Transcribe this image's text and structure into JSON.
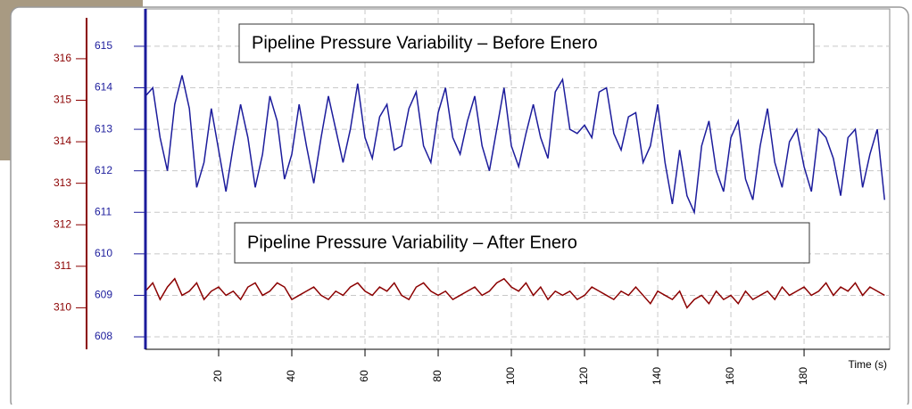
{
  "chart_data": {
    "type": "line",
    "annotations": [
      "Pipeline Pressure Variability – Before Enero",
      "Pipeline Pressure Variability – After Enero"
    ],
    "x_label": "Time (s)",
    "x": [
      0,
      2,
      4,
      6,
      8,
      10,
      12,
      14,
      16,
      18,
      20,
      22,
      24,
      26,
      28,
      30,
      32,
      34,
      36,
      38,
      40,
      42,
      44,
      46,
      48,
      50,
      52,
      54,
      56,
      58,
      60,
      62,
      64,
      66,
      68,
      70,
      72,
      74,
      76,
      78,
      80,
      82,
      84,
      86,
      88,
      90,
      92,
      94,
      96,
      98,
      100,
      102,
      104,
      106,
      108,
      110,
      112,
      114,
      116,
      118,
      120,
      122,
      124,
      126,
      128,
      130,
      132,
      134,
      136,
      138,
      140,
      142,
      144,
      146,
      148,
      150,
      152,
      154,
      156,
      158,
      160,
      162,
      164,
      166,
      168,
      170,
      172,
      174,
      176,
      178,
      180,
      182,
      184,
      186,
      188,
      190,
      192,
      194,
      196,
      198,
      200,
      202
    ],
    "series": [
      {
        "color": "#1c1c9c",
        "values": [
          613.8,
          614.0,
          612.8,
          612.0,
          613.6,
          614.3,
          613.5,
          611.6,
          612.2,
          613.5,
          612.5,
          611.5,
          612.6,
          613.6,
          612.8,
          611.6,
          612.4,
          613.8,
          613.2,
          611.8,
          612.4,
          613.6,
          612.6,
          611.7,
          612.8,
          613.8,
          613.0,
          612.2,
          613.0,
          614.1,
          612.8,
          612.3,
          613.3,
          613.6,
          612.5,
          612.6,
          613.5,
          613.9,
          612.6,
          612.2,
          613.4,
          614.0,
          612.8,
          612.4,
          613.2,
          613.8,
          612.6,
          612.0,
          613.0,
          614.0,
          612.6,
          612.1,
          612.9,
          613.6,
          612.8,
          612.3,
          613.9,
          614.2,
          613.0,
          612.9,
          613.1,
          612.8,
          613.9,
          614.0,
          612.9,
          612.5,
          613.3,
          613.4,
          612.2,
          612.6,
          613.6,
          612.2,
          611.2,
          612.5,
          611.4,
          611.0,
          612.6,
          613.2,
          612.0,
          611.5,
          612.8,
          613.2,
          611.8,
          611.3,
          612.6,
          613.5,
          612.2,
          611.6,
          612.7,
          613.0,
          612.1,
          611.5,
          613.0,
          612.8,
          612.3,
          611.4,
          612.8,
          613.0,
          611.6,
          612.4,
          613.0,
          611.3
        ]
      },
      {
        "color": "#8b0000",
        "axis": "y2",
        "values": [
          310.4,
          310.6,
          310.2,
          310.5,
          310.7,
          310.3,
          310.4,
          310.6,
          310.2,
          310.4,
          310.5,
          310.3,
          310.4,
          310.2,
          310.5,
          310.6,
          310.3,
          310.4,
          310.6,
          310.5,
          310.2,
          310.3,
          310.4,
          310.5,
          310.3,
          310.2,
          310.4,
          310.3,
          310.5,
          310.6,
          310.4,
          310.3,
          310.5,
          310.4,
          310.6,
          310.3,
          310.2,
          310.5,
          310.6,
          310.4,
          310.3,
          310.4,
          310.2,
          310.3,
          310.4,
          310.5,
          310.3,
          310.4,
          310.6,
          310.7,
          310.5,
          310.4,
          310.6,
          310.3,
          310.5,
          310.2,
          310.4,
          310.3,
          310.4,
          310.2,
          310.3,
          310.5,
          310.4,
          310.3,
          310.2,
          310.4,
          310.3,
          310.5,
          310.3,
          310.1,
          310.4,
          310.3,
          310.2,
          310.4,
          310.0,
          310.2,
          310.3,
          310.1,
          310.4,
          310.2,
          310.3,
          310.1,
          310.4,
          310.2,
          310.3,
          310.4,
          310.2,
          310.5,
          310.3,
          310.4,
          310.5,
          310.3,
          310.4,
          310.6,
          310.3,
          310.5,
          310.4,
          310.6,
          310.3,
          310.5,
          310.4,
          310.3
        ]
      }
    ],
    "xlim": [
      0,
      203.4
    ],
    "xticks": [
      20,
      40,
      60,
      80,
      100,
      120,
      140,
      160,
      180
    ],
    "ylim": [
      607.7,
      615.9
    ],
    "yticks": [
      608,
      609,
      610,
      611,
      612,
      613,
      614,
      615
    ],
    "y2lim": [
      309,
      317.2
    ],
    "y2ticks": [
      310,
      311,
      312,
      313,
      314,
      315,
      316
    ],
    "grid": true
  }
}
